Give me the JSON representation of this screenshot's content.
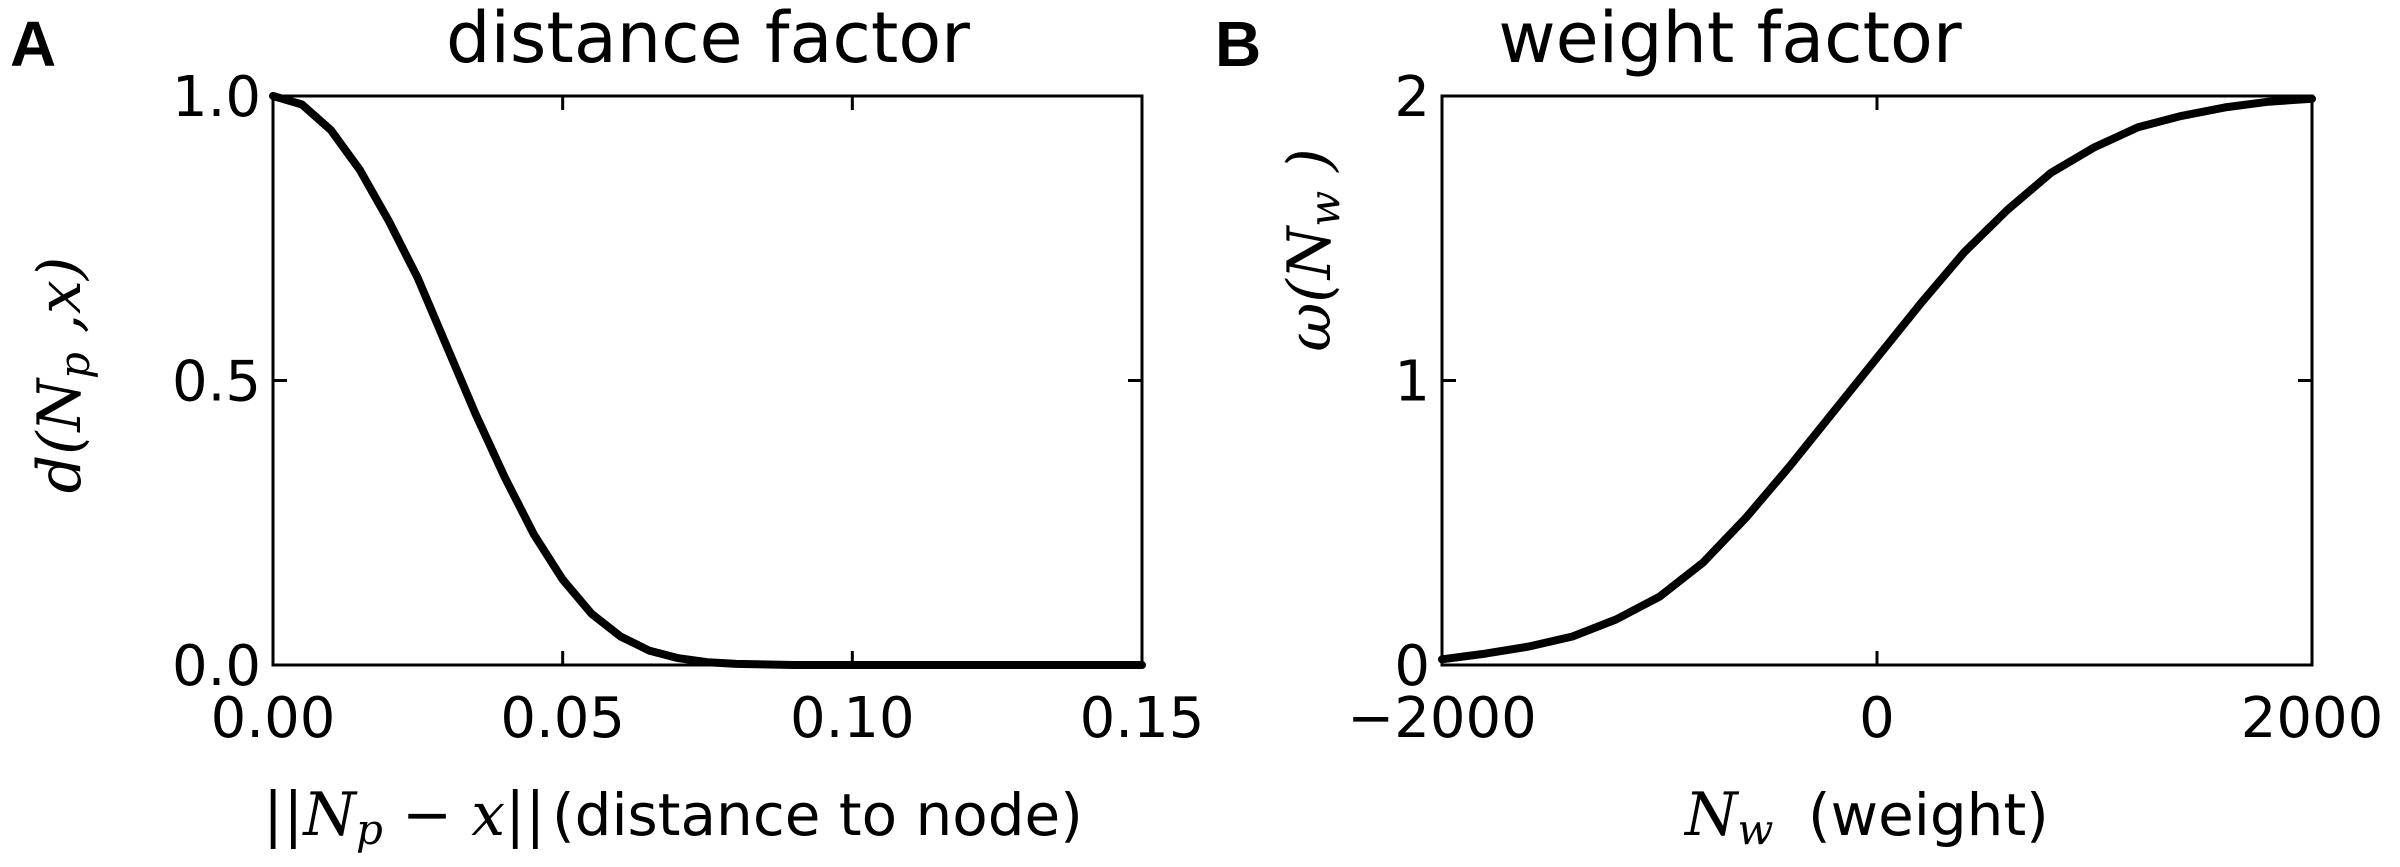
{
  "chart_data": [
    {
      "panel": "A",
      "type": "line",
      "title": "distance factor",
      "ylabel": "d(N_p ,x)",
      "xlabel_math": "||N_p − x||",
      "xlabel_text": "(distance to node)",
      "xlim": [
        0,
        0.15
      ],
      "ylim": [
        0,
        1.0
      ],
      "xticks": [
        0.0,
        0.05,
        0.1,
        0.15
      ],
      "xtick_labels": [
        "0.00",
        "0.05",
        "0.10",
        "0.15"
      ],
      "yticks": [
        0.0,
        0.5,
        1.0
      ],
      "ytick_labels": [
        "0.0",
        "0.5",
        "1.0"
      ],
      "grid": false,
      "series": [
        {
          "color": "#000000",
          "x": [
            0,
            0.005,
            0.01,
            0.015,
            0.02,
            0.025,
            0.03,
            0.035,
            0.04,
            0.045,
            0.05,
            0.055,
            0.06,
            0.065,
            0.07,
            0.075,
            0.08,
            0.09,
            0.1,
            0.11,
            0.12,
            0.13,
            0.14,
            0.15
          ],
          "y": [
            1.0,
            0.985,
            0.94,
            0.87,
            0.78,
            0.68,
            0.56,
            0.44,
            0.33,
            0.23,
            0.15,
            0.09,
            0.05,
            0.025,
            0.012,
            0.005,
            0.002,
            0.0,
            0.0,
            0.0,
            0.0,
            0.0,
            0.0,
            0.0
          ]
        }
      ]
    },
    {
      "panel": "B",
      "type": "line",
      "title": "weight factor",
      "ylabel": "ω(N_w )",
      "xlabel_math": "N_w",
      "xlabel_text": "(weight)",
      "xlim": [
        -2000,
        2000
      ],
      "ylim": [
        0,
        2
      ],
      "xticks": [
        -2000,
        0,
        2000
      ],
      "xtick_labels": [
        "−2000",
        "0",
        "2000"
      ],
      "yticks": [
        0,
        1,
        2
      ],
      "ytick_labels": [
        "0",
        "1",
        "2"
      ],
      "grid": false,
      "series": [
        {
          "color": "#000000",
          "x": [
            -2000,
            -1800,
            -1600,
            -1400,
            -1200,
            -1000,
            -800,
            -600,
            -400,
            -200,
            0,
            200,
            400,
            600,
            800,
            1000,
            1200,
            1400,
            1600,
            1800,
            2000
          ],
          "y": [
            0.02,
            0.04,
            0.065,
            0.1,
            0.16,
            0.24,
            0.36,
            0.52,
            0.7,
            0.89,
            1.08,
            1.27,
            1.45,
            1.6,
            1.73,
            1.82,
            1.89,
            1.93,
            1.96,
            1.98,
            1.99
          ]
        }
      ]
    }
  ]
}
